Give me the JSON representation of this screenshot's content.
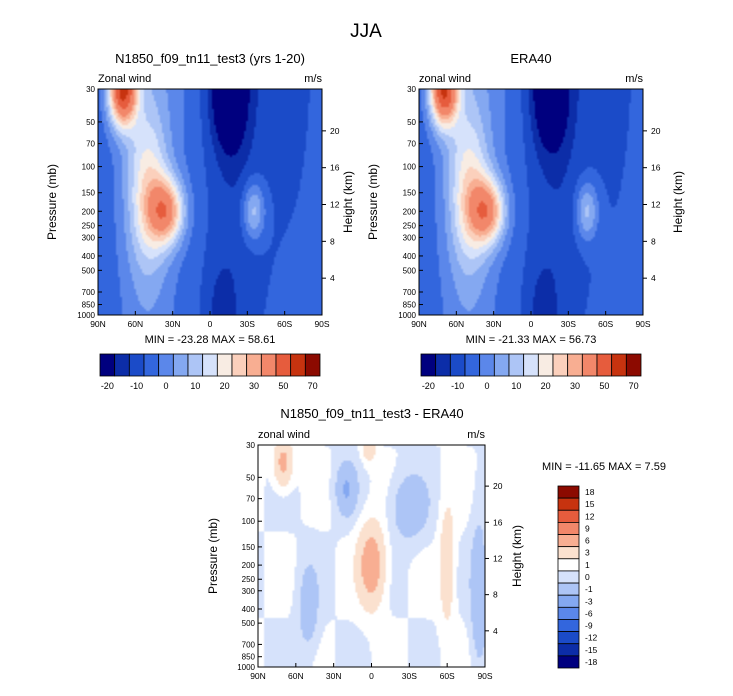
{
  "figure_title": "JJA",
  "colors": {
    "base_palette": [
      "#00007f",
      "#0c2da8",
      "#1b4bc8",
      "#3366dd",
      "#5b87ea",
      "#84a8f1",
      "#adc5f6",
      "#d6e2fb",
      "#f8ece3",
      "#fbd0bc",
      "#f8ae92",
      "#f2876a",
      "#e65c3d",
      "#c7330f",
      "#8c0a00"
    ],
    "diff_palette": [
      "#00007f",
      "#0c2da8",
      "#1b4bc8",
      "#3366dd",
      "#5b87ea",
      "#84a8f1",
      "#adc5f6",
      "#d6e2fb",
      "#ffffff",
      "#fbe1cf",
      "#f8ae92",
      "#f2876a",
      "#e65c3d",
      "#c7330f",
      "#8c0a00"
    ]
  },
  "chart_data": [
    {
      "id": "model",
      "type": "heatmap",
      "title": "N1850_f09_tn11_test3 (yrs 1-20)",
      "left_label": "Zonal wind",
      "right_label": "m/s",
      "ylabel": "Pressure (mb)",
      "ylabel_right": "Height (km)",
      "x_ticks": [
        "90N",
        "60N",
        "30N",
        "0",
        "30S",
        "60S",
        "90S"
      ],
      "x_values": [
        -90,
        -60,
        -30,
        0,
        30,
        60,
        90
      ],
      "xlim": [
        -90,
        90
      ],
      "y_ticks": [
        "30",
        "50",
        "70",
        "100",
        "150",
        "200",
        "250",
        "300",
        "400",
        "500",
        "700",
        "850",
        "1000"
      ],
      "y_values": [
        30,
        50,
        70,
        100,
        150,
        200,
        250,
        300,
        400,
        500,
        700,
        850,
        1000
      ],
      "ylim": [
        30,
        1000
      ],
      "height_ticks": [
        "4",
        "8",
        "12",
        "16",
        "20"
      ],
      "height_values": [
        4,
        8,
        12,
        16,
        20
      ],
      "min_text": "MIN = -23.28  MAX =  58.61",
      "colorbar_labels": [
        "-20",
        "-10",
        "0",
        "10",
        "20",
        "30",
        "50",
        "70"
      ],
      "features": [
        {
          "lat": 70,
          "p": 30,
          "value": 58,
          "sigma_lat": 11,
          "sigma_lp": 0.55
        },
        {
          "lat": 35,
          "p": 200,
          "value": 35,
          "sigma_lat": 14,
          "sigma_lp": 0.5
        },
        {
          "lat": 50,
          "p": 150,
          "value": 20,
          "sigma_lat": 16,
          "sigma_lp": 1.2
        },
        {
          "lat": -35,
          "p": 200,
          "value": 18,
          "sigma_lat": 9,
          "sigma_lp": 0.45
        },
        {
          "lat": -15,
          "p": 30,
          "value": -23,
          "sigma_lat": 14,
          "sigma_lp": 0.9
        },
        {
          "lat": -8,
          "p": 1000,
          "value": -6,
          "sigma_lat": 12,
          "sigma_lp": 0.8
        }
      ]
    },
    {
      "id": "obs",
      "type": "heatmap",
      "title": "ERA40",
      "left_label": "zonal wind",
      "right_label": "m/s",
      "ylabel": "Pressure (mb)",
      "ylabel_right": "Height (km)",
      "x_ticks": [
        "90N",
        "60N",
        "30N",
        "0",
        "30S",
        "60S",
        "90S"
      ],
      "x_values": [
        -90,
        -60,
        -30,
        0,
        30,
        60,
        90
      ],
      "xlim": [
        -90,
        90
      ],
      "y_ticks": [
        "30",
        "50",
        "70",
        "100",
        "150",
        "200",
        "250",
        "300",
        "400",
        "500",
        "700",
        "850",
        "1000"
      ],
      "y_values": [
        30,
        50,
        70,
        100,
        150,
        200,
        250,
        300,
        400,
        500,
        700,
        850,
        1000
      ],
      "ylim": [
        30,
        1000
      ],
      "height_ticks": [
        "4",
        "8",
        "12",
        "16",
        "20"
      ],
      "height_values": [
        4,
        8,
        12,
        16,
        20
      ],
      "min_text": "MIN = -21.33  MAX =  56.73",
      "colorbar_labels": [
        "-20",
        "-10",
        "0",
        "10",
        "20",
        "30",
        "50",
        "70"
      ],
      "features": [
        {
          "lat": 70,
          "p": 30,
          "value": 56,
          "sigma_lat": 11,
          "sigma_lp": 0.55
        },
        {
          "lat": 35,
          "p": 200,
          "value": 35,
          "sigma_lat": 14,
          "sigma_lp": 0.5
        },
        {
          "lat": 50,
          "p": 150,
          "value": 20,
          "sigma_lat": 16,
          "sigma_lp": 1.2
        },
        {
          "lat": -45,
          "p": 200,
          "value": 17,
          "sigma_lat": 9,
          "sigma_lp": 0.45
        },
        {
          "lat": -15,
          "p": 30,
          "value": -21,
          "sigma_lat": 14,
          "sigma_lp": 0.9
        },
        {
          "lat": -8,
          "p": 1000,
          "value": -6,
          "sigma_lat": 12,
          "sigma_lp": 0.8
        }
      ]
    },
    {
      "id": "diff",
      "type": "heatmap",
      "title": "N1850_f09_tn11_test3 - ERA40",
      "left_label": "zonal wind",
      "right_label": "m/s",
      "ylabel": "Pressure (mb)",
      "ylabel_right": "Height (km)",
      "x_ticks": [
        "90N",
        "60N",
        "30N",
        "0",
        "30S",
        "60S",
        "90S"
      ],
      "x_values": [
        -90,
        -60,
        -30,
        0,
        30,
        60,
        90
      ],
      "xlim": [
        -90,
        90
      ],
      "y_ticks": [
        "30",
        "50",
        "70",
        "100",
        "150",
        "200",
        "250",
        "300",
        "400",
        "500",
        "700",
        "850",
        "1000"
      ],
      "y_values": [
        30,
        50,
        70,
        100,
        150,
        200,
        250,
        300,
        400,
        500,
        700,
        850,
        1000
      ],
      "ylim": [
        30,
        1000
      ],
      "height_ticks": [
        "4",
        "8",
        "12",
        "16",
        "20"
      ],
      "height_values": [
        4,
        8,
        12,
        16,
        20
      ],
      "min_text": "MIN = -11.65  MAX =   7.59",
      "colorbar_labels": [
        "18",
        "15",
        "12",
        "9",
        "6",
        "3",
        "1",
        "0",
        "-1",
        "-3",
        "-6",
        "-9",
        "-12",
        "-15",
        "-18"
      ],
      "features": [
        {
          "lat": 0,
          "p": 200,
          "value": 5,
          "sigma_lat": 10,
          "sigma_lp": 0.6
        },
        {
          "lat": -60,
          "p": 200,
          "value": 2.5,
          "sigma_lat": 6,
          "sigma_lp": 0.9
        },
        {
          "lat": 70,
          "p": 40,
          "value": 4,
          "sigma_lat": 7,
          "sigma_lp": 0.35
        },
        {
          "lat": 2,
          "p": 30,
          "value": 3,
          "sigma_lat": 5,
          "sigma_lp": 0.25
        },
        {
          "lat": 50,
          "p": 400,
          "value": -2,
          "sigma_lat": 8,
          "sigma_lp": 0.7
        },
        {
          "lat": -30,
          "p": 80,
          "value": -2.5,
          "sigma_lat": 14,
          "sigma_lp": 0.5
        },
        {
          "lat": 20,
          "p": 60,
          "value": -3,
          "sigma_lat": 8,
          "sigma_lp": 0.4
        },
        {
          "lat": -85,
          "p": 300,
          "value": -3,
          "sigma_lat": 6,
          "sigma_lp": 1.0
        }
      ]
    }
  ]
}
